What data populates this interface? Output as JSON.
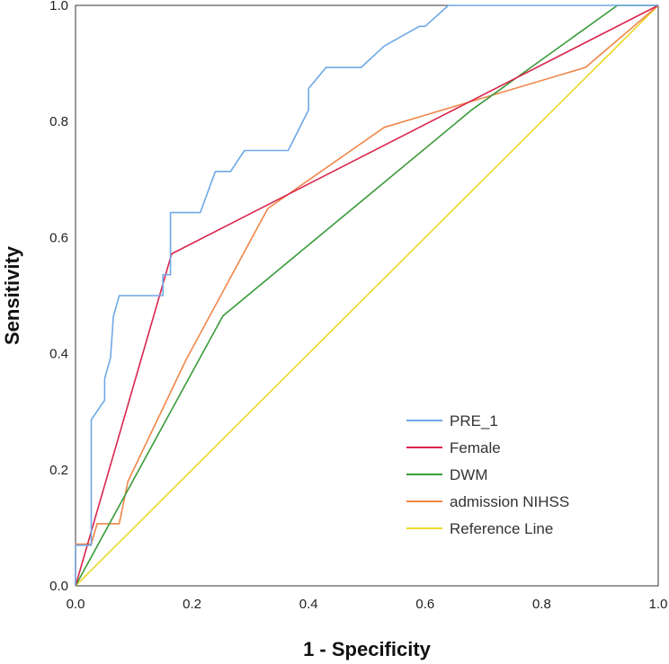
{
  "chart_data": {
    "type": "line",
    "title": "",
    "xlabel": "1 - Specificity",
    "ylabel": "Sensitivity",
    "xlim": [
      0,
      1
    ],
    "ylim": [
      0,
      1
    ],
    "xticks": [
      "0.0",
      "0.2",
      "0.4",
      "0.6",
      "0.8",
      "1.0"
    ],
    "yticks": [
      "0.0",
      "0.2",
      "0.4",
      "0.6",
      "0.8",
      "1.0"
    ],
    "grid": false,
    "legend_position": "bottom-right",
    "series": [
      {
        "name": "PRE_1",
        "color": "#6fa8e6",
        "points": [
          [
            0,
            0
          ],
          [
            0.0,
            0.07
          ],
          [
            0.027,
            0.07
          ],
          [
            0.027,
            0.286
          ],
          [
            0.05,
            0.32
          ],
          [
            0.05,
            0.357
          ],
          [
            0.06,
            0.393
          ],
          [
            0.065,
            0.464
          ],
          [
            0.075,
            0.5
          ],
          [
            0.15,
            0.5
          ],
          [
            0.15,
            0.536
          ],
          [
            0.163,
            0.536
          ],
          [
            0.163,
            0.643
          ],
          [
            0.214,
            0.643
          ],
          [
            0.24,
            0.714
          ],
          [
            0.266,
            0.714
          ],
          [
            0.29,
            0.75
          ],
          [
            0.365,
            0.75
          ],
          [
            0.4,
            0.82
          ],
          [
            0.4,
            0.857
          ],
          [
            0.43,
            0.893
          ],
          [
            0.49,
            0.893
          ],
          [
            0.53,
            0.93
          ],
          [
            0.59,
            0.964
          ],
          [
            0.6,
            0.964
          ],
          [
            0.64,
            1.0
          ],
          [
            1.0,
            1.0
          ]
        ]
      },
      {
        "name": "Female",
        "color": "#d9264d",
        "points": [
          [
            0,
            0
          ],
          [
            0.165,
            0.572
          ],
          [
            1.0,
            1.0
          ]
        ]
      },
      {
        "name": "DWM",
        "color": "#3a9b3a",
        "points": [
          [
            0,
            0
          ],
          [
            0.253,
            0.465
          ],
          [
            0.68,
            0.82
          ],
          [
            0.93,
            1.0
          ],
          [
            1.0,
            1.0
          ]
        ]
      },
      {
        "name": "admission NIHSS",
        "color": "#f0874a",
        "points": [
          [
            0,
            0
          ],
          [
            0.0,
            0.072
          ],
          [
            0.027,
            0.072
          ],
          [
            0.037,
            0.107
          ],
          [
            0.075,
            0.107
          ],
          [
            0.09,
            0.18
          ],
          [
            0.19,
            0.39
          ],
          [
            0.33,
            0.65
          ],
          [
            0.53,
            0.79
          ],
          [
            0.875,
            0.893
          ],
          [
            1.0,
            1.0
          ]
        ]
      },
      {
        "name": "Reference Line",
        "color": "#ecd82a",
        "points": [
          [
            0,
            0
          ],
          [
            1,
            1
          ]
        ]
      }
    ]
  }
}
